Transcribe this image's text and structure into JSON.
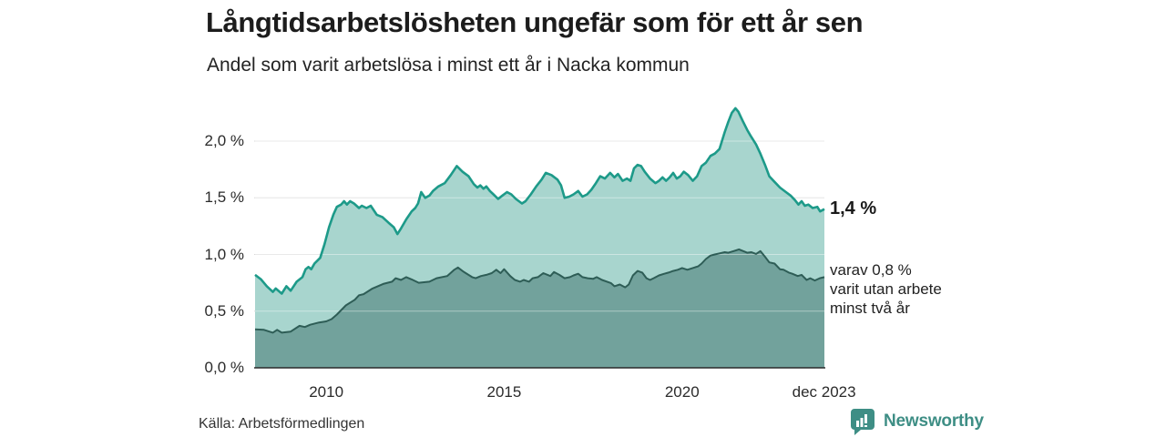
{
  "header": {
    "title": "Långtidsarbetslösheten ungefär som för ett år sen",
    "subtitle": "Andel som varit arbetslösa i minst ett år i Nacka kommun"
  },
  "annotations": {
    "total_label": "1,4 %",
    "breakdown_lines": [
      "varav 0,8 %",
      "varit utan arbete",
      "minst två år"
    ]
  },
  "footer": {
    "source": "Källa: Arbetsförmedlingen",
    "brand": "Newsworthy"
  },
  "colors": {
    "line_total": "#1d9a89",
    "fill_total": "#a8d5ce",
    "line_two_years": "#2e5d56",
    "fill_two_years": "#72a29c",
    "gridline": "#d9d9d9",
    "gridline_over_fill": "rgba(255,255,255,0.42)",
    "axis": "#2b2b2b",
    "brand_teal": "#3e8e85"
  },
  "chart_data": {
    "type": "area",
    "title": "Långtidsarbetslösheten ungefär som för ett år sen",
    "subtitle": "Andel som varit arbetslösa i minst ett år i Nacka kommun",
    "unit": "%",
    "x_range": [
      2008.0,
      2024.0
    ],
    "ylim": [
      0,
      2.4
    ],
    "grid": true,
    "legend_position": "right-annotations",
    "y_axis": {
      "ticks": [
        {
          "label": "2,0 %",
          "value": 2.0
        },
        {
          "label": "1,5 %",
          "value": 1.5
        },
        {
          "label": "1,0 %",
          "value": 1.0
        },
        {
          "label": "0,5 %",
          "value": 0.5
        },
        {
          "label": "0,0 %",
          "value": 0.0
        }
      ]
    },
    "x_axis": {
      "ticks": [
        {
          "label": "2010",
          "year": 2010.0
        },
        {
          "label": "2015",
          "year": 2015.0
        },
        {
          "label": "2020",
          "year": 2020.0
        },
        {
          "label": "dec 2023",
          "year": 2023.99
        }
      ]
    },
    "series": [
      {
        "name": "Arbetslösa minst ett år",
        "end_label": "1,4 %",
        "points": [
          [
            2008.0,
            0.82
          ],
          [
            2008.17,
            0.78
          ],
          [
            2008.33,
            0.72
          ],
          [
            2008.5,
            0.67
          ],
          [
            2008.58,
            0.7
          ],
          [
            2008.75,
            0.655
          ],
          [
            2008.88,
            0.72
          ],
          [
            2009.0,
            0.68
          ],
          [
            2009.17,
            0.76
          ],
          [
            2009.33,
            0.8
          ],
          [
            2009.42,
            0.87
          ],
          [
            2009.5,
            0.89
          ],
          [
            2009.58,
            0.87
          ],
          [
            2009.67,
            0.92
          ],
          [
            2009.83,
            0.97
          ],
          [
            2009.95,
            1.09
          ],
          [
            2010.08,
            1.24
          ],
          [
            2010.2,
            1.35
          ],
          [
            2010.3,
            1.42
          ],
          [
            2010.42,
            1.44
          ],
          [
            2010.5,
            1.47
          ],
          [
            2010.58,
            1.44
          ],
          [
            2010.67,
            1.47
          ],
          [
            2010.78,
            1.45
          ],
          [
            2010.92,
            1.41
          ],
          [
            2011.0,
            1.43
          ],
          [
            2011.13,
            1.41
          ],
          [
            2011.25,
            1.43
          ],
          [
            2011.42,
            1.35
          ],
          [
            2011.58,
            1.33
          ],
          [
            2011.75,
            1.28
          ],
          [
            2011.9,
            1.24
          ],
          [
            2012.0,
            1.18
          ],
          [
            2012.1,
            1.23
          ],
          [
            2012.25,
            1.31
          ],
          [
            2012.4,
            1.38
          ],
          [
            2012.5,
            1.41
          ],
          [
            2012.58,
            1.45
          ],
          [
            2012.67,
            1.55
          ],
          [
            2012.78,
            1.5
          ],
          [
            2012.9,
            1.52
          ],
          [
            2013.0,
            1.56
          ],
          [
            2013.15,
            1.6
          ],
          [
            2013.33,
            1.63
          ],
          [
            2013.5,
            1.7
          ],
          [
            2013.67,
            1.78
          ],
          [
            2013.83,
            1.73
          ],
          [
            2014.0,
            1.69
          ],
          [
            2014.15,
            1.62
          ],
          [
            2014.25,
            1.59
          ],
          [
            2014.33,
            1.61
          ],
          [
            2014.42,
            1.58
          ],
          [
            2014.5,
            1.6
          ],
          [
            2014.6,
            1.56
          ],
          [
            2014.7,
            1.53
          ],
          [
            2014.83,
            1.49
          ],
          [
            2014.95,
            1.52
          ],
          [
            2015.08,
            1.55
          ],
          [
            2015.2,
            1.53
          ],
          [
            2015.33,
            1.49
          ],
          [
            2015.5,
            1.45
          ],
          [
            2015.6,
            1.47
          ],
          [
            2015.75,
            1.53
          ],
          [
            2015.9,
            1.6
          ],
          [
            2016.05,
            1.66
          ],
          [
            2016.17,
            1.72
          ],
          [
            2016.33,
            1.7
          ],
          [
            2016.5,
            1.66
          ],
          [
            2016.6,
            1.61
          ],
          [
            2016.7,
            1.5
          ],
          [
            2016.83,
            1.51
          ],
          [
            2016.95,
            1.53
          ],
          [
            2017.08,
            1.56
          ],
          [
            2017.2,
            1.51
          ],
          [
            2017.33,
            1.53
          ],
          [
            2017.45,
            1.57
          ],
          [
            2017.58,
            1.63
          ],
          [
            2017.7,
            1.69
          ],
          [
            2017.83,
            1.67
          ],
          [
            2017.98,
            1.72
          ],
          [
            2018.1,
            1.68
          ],
          [
            2018.2,
            1.71
          ],
          [
            2018.33,
            1.65
          ],
          [
            2018.45,
            1.67
          ],
          [
            2018.55,
            1.65
          ],
          [
            2018.65,
            1.76
          ],
          [
            2018.75,
            1.79
          ],
          [
            2018.85,
            1.78
          ],
          [
            2018.95,
            1.73
          ],
          [
            2019.1,
            1.67
          ],
          [
            2019.25,
            1.63
          ],
          [
            2019.35,
            1.65
          ],
          [
            2019.45,
            1.68
          ],
          [
            2019.55,
            1.65
          ],
          [
            2019.65,
            1.68
          ],
          [
            2019.75,
            1.72
          ],
          [
            2019.85,
            1.67
          ],
          [
            2019.95,
            1.69
          ],
          [
            2020.05,
            1.73
          ],
          [
            2020.17,
            1.7
          ],
          [
            2020.3,
            1.65
          ],
          [
            2020.42,
            1.69
          ],
          [
            2020.55,
            1.78
          ],
          [
            2020.67,
            1.81
          ],
          [
            2020.8,
            1.87
          ],
          [
            2020.92,
            1.89
          ],
          [
            2021.05,
            1.93
          ],
          [
            2021.2,
            2.08
          ],
          [
            2021.3,
            2.17
          ],
          [
            2021.4,
            2.25
          ],
          [
            2021.5,
            2.29
          ],
          [
            2021.58,
            2.26
          ],
          [
            2021.7,
            2.18
          ],
          [
            2021.83,
            2.1
          ],
          [
            2021.92,
            2.05
          ],
          [
            2022.08,
            1.97
          ],
          [
            2022.2,
            1.89
          ],
          [
            2022.33,
            1.79
          ],
          [
            2022.45,
            1.69
          ],
          [
            2022.6,
            1.64
          ],
          [
            2022.75,
            1.59
          ],
          [
            2022.92,
            1.55
          ],
          [
            2023.05,
            1.52
          ],
          [
            2023.17,
            1.48
          ],
          [
            2023.27,
            1.44
          ],
          [
            2023.36,
            1.47
          ],
          [
            2023.45,
            1.43
          ],
          [
            2023.55,
            1.44
          ],
          [
            2023.67,
            1.41
          ],
          [
            2023.8,
            1.42
          ],
          [
            2023.88,
            1.38
          ],
          [
            2024.0,
            1.4
          ]
        ]
      },
      {
        "name": "varav arbetslösa minst två år",
        "end_label": "varav 0,8 % varit utan arbete minst två år",
        "points": [
          [
            2008.0,
            0.34
          ],
          [
            2008.25,
            0.335
          ],
          [
            2008.5,
            0.31
          ],
          [
            2008.62,
            0.335
          ],
          [
            2008.75,
            0.31
          ],
          [
            2009.0,
            0.32
          ],
          [
            2009.25,
            0.37
          ],
          [
            2009.4,
            0.36
          ],
          [
            2009.55,
            0.38
          ],
          [
            2009.8,
            0.4
          ],
          [
            2010.0,
            0.41
          ],
          [
            2010.15,
            0.43
          ],
          [
            2010.3,
            0.47
          ],
          [
            2010.55,
            0.55
          ],
          [
            2010.8,
            0.6
          ],
          [
            2010.92,
            0.64
          ],
          [
            2011.05,
            0.65
          ],
          [
            2011.3,
            0.7
          ],
          [
            2011.6,
            0.74
          ],
          [
            2011.85,
            0.76
          ],
          [
            2011.95,
            0.79
          ],
          [
            2012.1,
            0.775
          ],
          [
            2012.25,
            0.8
          ],
          [
            2012.4,
            0.78
          ],
          [
            2012.6,
            0.75
          ],
          [
            2012.9,
            0.76
          ],
          [
            2013.1,
            0.79
          ],
          [
            2013.4,
            0.81
          ],
          [
            2013.6,
            0.865
          ],
          [
            2013.7,
            0.885
          ],
          [
            2013.85,
            0.85
          ],
          [
            2014.1,
            0.8
          ],
          [
            2014.2,
            0.79
          ],
          [
            2014.35,
            0.81
          ],
          [
            2014.5,
            0.82
          ],
          [
            2014.65,
            0.835
          ],
          [
            2014.78,
            0.865
          ],
          [
            2014.9,
            0.835
          ],
          [
            2015.0,
            0.87
          ],
          [
            2015.17,
            0.81
          ],
          [
            2015.3,
            0.775
          ],
          [
            2015.45,
            0.76
          ],
          [
            2015.55,
            0.775
          ],
          [
            2015.7,
            0.76
          ],
          [
            2015.8,
            0.79
          ],
          [
            2015.95,
            0.8
          ],
          [
            2016.1,
            0.835
          ],
          [
            2016.22,
            0.82
          ],
          [
            2016.3,
            0.81
          ],
          [
            2016.4,
            0.845
          ],
          [
            2016.55,
            0.82
          ],
          [
            2016.7,
            0.79
          ],
          [
            2016.85,
            0.8
          ],
          [
            2016.95,
            0.815
          ],
          [
            2017.08,
            0.83
          ],
          [
            2017.2,
            0.8
          ],
          [
            2017.35,
            0.79
          ],
          [
            2017.5,
            0.785
          ],
          [
            2017.6,
            0.8
          ],
          [
            2017.75,
            0.775
          ],
          [
            2018.0,
            0.748
          ],
          [
            2018.1,
            0.72
          ],
          [
            2018.25,
            0.735
          ],
          [
            2018.4,
            0.71
          ],
          [
            2018.5,
            0.735
          ],
          [
            2018.62,
            0.815
          ],
          [
            2018.75,
            0.855
          ],
          [
            2018.88,
            0.84
          ],
          [
            2019.0,
            0.79
          ],
          [
            2019.1,
            0.775
          ],
          [
            2019.2,
            0.79
          ],
          [
            2019.35,
            0.815
          ],
          [
            2019.5,
            0.83
          ],
          [
            2019.62,
            0.84
          ],
          [
            2019.75,
            0.855
          ],
          [
            2019.88,
            0.865
          ],
          [
            2020.0,
            0.88
          ],
          [
            2020.15,
            0.865
          ],
          [
            2020.3,
            0.88
          ],
          [
            2020.45,
            0.895
          ],
          [
            2020.55,
            0.92
          ],
          [
            2020.67,
            0.96
          ],
          [
            2020.8,
            0.99
          ],
          [
            2020.92,
            1.0
          ],
          [
            2021.05,
            1.01
          ],
          [
            2021.2,
            1.02
          ],
          [
            2021.3,
            1.015
          ],
          [
            2021.45,
            1.03
          ],
          [
            2021.6,
            1.045
          ],
          [
            2021.83,
            1.015
          ],
          [
            2021.95,
            1.02
          ],
          [
            2022.08,
            1.005
          ],
          [
            2022.2,
            1.03
          ],
          [
            2022.33,
            0.98
          ],
          [
            2022.45,
            0.93
          ],
          [
            2022.6,
            0.92
          ],
          [
            2022.75,
            0.87
          ],
          [
            2022.85,
            0.865
          ],
          [
            2023.0,
            0.84
          ],
          [
            2023.1,
            0.83
          ],
          [
            2023.25,
            0.81
          ],
          [
            2023.36,
            0.82
          ],
          [
            2023.5,
            0.775
          ],
          [
            2023.6,
            0.79
          ],
          [
            2023.73,
            0.77
          ],
          [
            2023.87,
            0.79
          ],
          [
            2024.0,
            0.8
          ]
        ]
      }
    ]
  }
}
